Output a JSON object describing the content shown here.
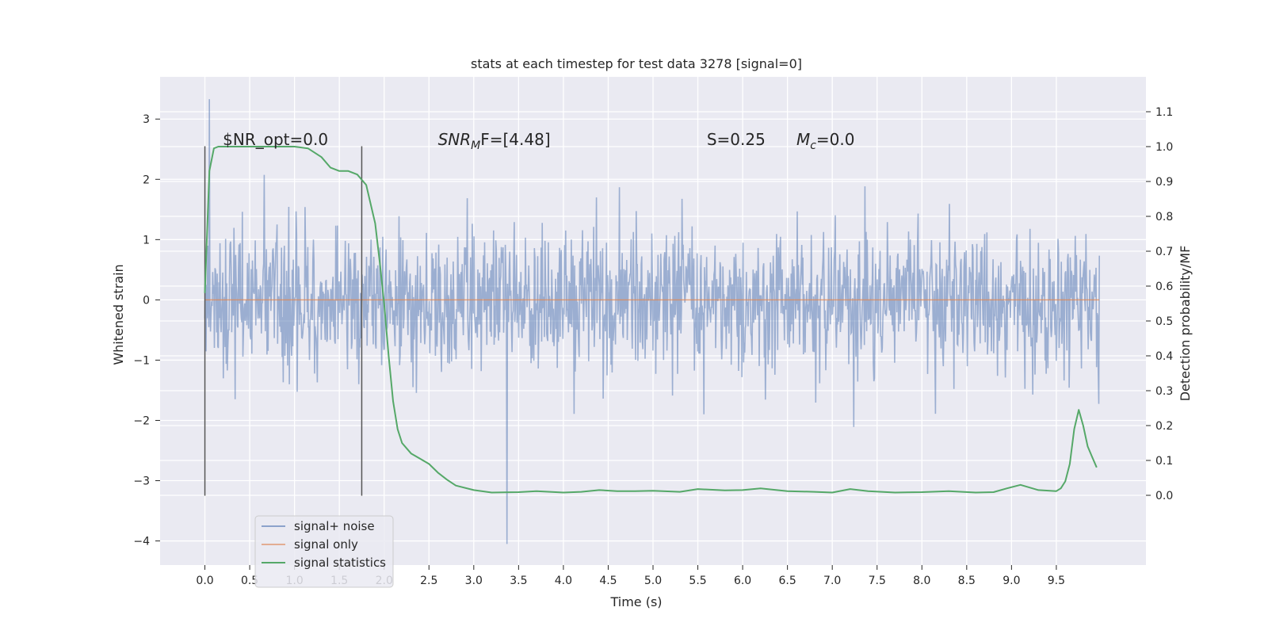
{
  "chart_data": {
    "type": "line",
    "title": "stats at each timestep for test data 3278 [signal=0]",
    "xlabel": "Time (s)",
    "ylabel": "Whitened strain",
    "y2label": "Detection probability/MF",
    "xlim": [
      -0.5,
      10.5
    ],
    "ylim": [
      -4.4,
      3.7
    ],
    "y2lim": [
      -0.2,
      1.2
    ],
    "xticks": [
      "0.0",
      "0.5",
      "1.0",
      "1.5",
      "2.0",
      "2.5",
      "3.0",
      "3.5",
      "4.0",
      "4.5",
      "5.0",
      "5.5",
      "6.0",
      "6.5",
      "7.0",
      "7.5",
      "8.0",
      "8.5",
      "9.0",
      "9.5"
    ],
    "yticks": [
      "3",
      "2",
      "1",
      "0",
      "−1",
      "−2",
      "−3",
      "−4"
    ],
    "y2ticks": [
      "1.1",
      "1.0",
      "0.9",
      "0.8",
      "0.7",
      "0.6",
      "0.5",
      "0.4",
      "0.3",
      "0.2",
      "0.1",
      "0.0"
    ],
    "grid": true,
    "legend_position": "lower-left",
    "annotations": [
      "$NR_opt=0.0",
      "SNR",
      "M",
      "F=[4.48]",
      "S=0.25",
      "M",
      "c",
      "=0.0"
    ],
    "vertical_markers": [
      {
        "x": 0.0,
        "y_range": [
          -3.25,
          2.55
        ]
      },
      {
        "x": 1.75,
        "y_range": [
          -3.25,
          2.55
        ]
      }
    ],
    "series": [
      {
        "name": "signal+ noise",
        "color": "#4c72b0",
        "axis": "left",
        "x_range": [
          0.0,
          9.98
        ],
        "typical_envelope": [
          -1.75,
          1.75
        ],
        "extremes": {
          "max": 3.33,
          "min": -4.05
        }
      },
      {
        "name": "signal only",
        "color": "#dd8452",
        "axis": "left",
        "x": [
          0.0,
          9.98
        ],
        "y": [
          0.0,
          0.0
        ]
      },
      {
        "name": "signal statistics",
        "color": "#55a868",
        "axis": "right",
        "x": [
          0.0,
          0.05,
          0.1,
          0.15,
          0.25,
          0.5,
          0.75,
          1.0,
          1.15,
          1.3,
          1.4,
          1.5,
          1.6,
          1.7,
          1.8,
          1.9,
          1.95,
          2.0,
          2.05,
          2.1,
          2.15,
          2.2,
          2.3,
          2.4,
          2.5,
          2.6,
          2.7,
          2.8,
          3.0,
          3.2,
          3.5,
          3.7,
          4.0,
          4.2,
          4.4,
          4.6,
          4.8,
          5.0,
          5.3,
          5.5,
          5.8,
          6.0,
          6.2,
          6.5,
          6.8,
          7.0,
          7.2,
          7.4,
          7.7,
          8.0,
          8.3,
          8.6,
          8.8,
          8.95,
          9.1,
          9.3,
          9.5,
          9.55,
          9.6,
          9.65,
          9.7,
          9.75,
          9.8,
          9.85,
          9.9,
          9.95
        ],
        "y": [
          0.58,
          0.93,
          0.995,
          1.0,
          1.0,
          1.0,
          1.0,
          1.0,
          0.995,
          0.97,
          0.94,
          0.93,
          0.93,
          0.92,
          0.89,
          0.78,
          0.67,
          0.55,
          0.4,
          0.27,
          0.19,
          0.15,
          0.12,
          0.105,
          0.09,
          0.065,
          0.045,
          0.028,
          0.015,
          0.008,
          0.009,
          0.012,
          0.008,
          0.01,
          0.015,
          0.012,
          0.012,
          0.013,
          0.01,
          0.018,
          0.014,
          0.015,
          0.02,
          0.012,
          0.01,
          0.008,
          0.018,
          0.012,
          0.008,
          0.009,
          0.012,
          0.008,
          0.009,
          0.02,
          0.03,
          0.015,
          0.012,
          0.02,
          0.04,
          0.09,
          0.19,
          0.245,
          0.2,
          0.14,
          0.11,
          0.08
        ]
      }
    ]
  }
}
